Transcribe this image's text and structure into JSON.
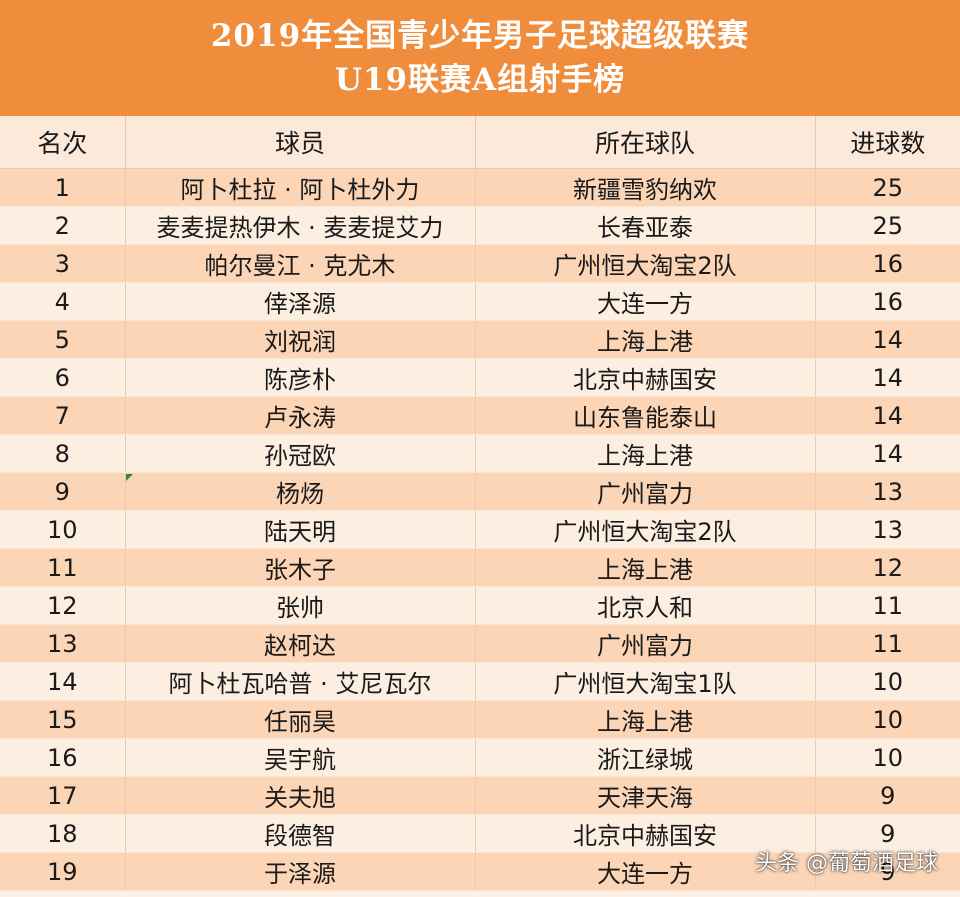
{
  "title": {
    "line1": "2019年全国青少年男子足球超级联赛",
    "line2": "U19联赛A组射手榜"
  },
  "columns": {
    "rank": "名次",
    "player": "球员",
    "team": "所在球队",
    "goals": "进球数"
  },
  "rows": [
    {
      "rank": "1",
      "player": "阿卜杜拉 · 阿卜杜外力",
      "team": "新疆雪豹纳欢",
      "goals": "25"
    },
    {
      "rank": "2",
      "player": "麦麦提热伊木 · 麦麦提艾力",
      "team": "长春亚泰",
      "goals": "25"
    },
    {
      "rank": "3",
      "player": "帕尔曼江 · 克尤木",
      "team": "广州恒大淘宝2队",
      "goals": "16"
    },
    {
      "rank": "4",
      "player": "倖泽源",
      "team": "大连一方",
      "goals": "16"
    },
    {
      "rank": "5",
      "player": "刘祝润",
      "team": "上海上港",
      "goals": "14"
    },
    {
      "rank": "6",
      "player": "陈彦朴",
      "team": "北京中赫国安",
      "goals": "14"
    },
    {
      "rank": "7",
      "player": "卢永涛",
      "team": "山东鲁能泰山",
      "goals": "14"
    },
    {
      "rank": "8",
      "player": "孙冠欧",
      "team": "上海上港",
      "goals": "14"
    },
    {
      "rank": "9",
      "player": "杨炀",
      "team": "广州富力",
      "goals": "13"
    },
    {
      "rank": "10",
      "player": "陆天明",
      "team": "广州恒大淘宝2队",
      "goals": "13"
    },
    {
      "rank": "11",
      "player": "张木子",
      "team": "上海上港",
      "goals": "12"
    },
    {
      "rank": "12",
      "player": "张帅",
      "team": "北京人和",
      "goals": "11"
    },
    {
      "rank": "13",
      "player": "赵柯达",
      "team": "广州富力",
      "goals": "11"
    },
    {
      "rank": "14",
      "player": "阿卜杜瓦哈普 · 艾尼瓦尔",
      "team": "广州恒大淘宝1队",
      "goals": "10"
    },
    {
      "rank": "15",
      "player": "任丽昊",
      "team": "上海上港",
      "goals": "10"
    },
    {
      "rank": "16",
      "player": "吴宇航",
      "team": "浙江绿城",
      "goals": "10"
    },
    {
      "rank": "17",
      "player": "关夫旭",
      "team": "天津天海",
      "goals": "9"
    },
    {
      "rank": "18",
      "player": "段德智",
      "team": "北京中赫国安",
      "goals": "9"
    },
    {
      "rank": "19",
      "player": "于泽源",
      "team": "大连一方",
      "goals": "9"
    }
  ],
  "watermark": "头条 @葡萄酒足球",
  "colors": {
    "header": "#ef8d3c",
    "row_odd": "#fbd5b6",
    "row_even": "#fdeee2"
  }
}
